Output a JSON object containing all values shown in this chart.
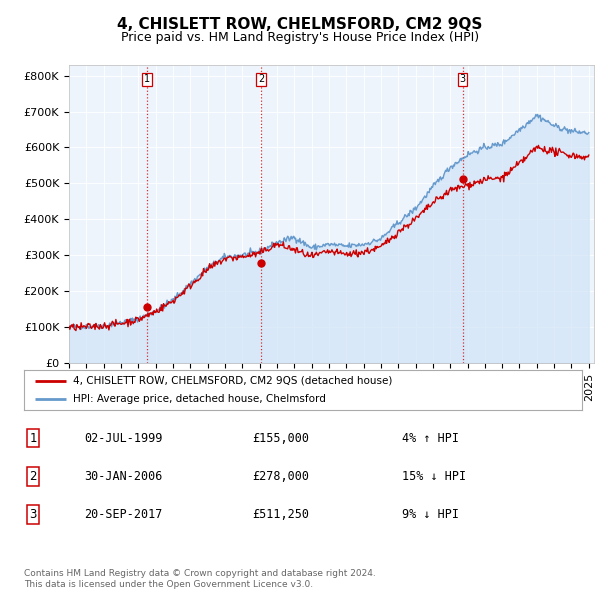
{
  "title": "4, CHISLETT ROW, CHELMSFORD, CM2 9QS",
  "subtitle": "Price paid vs. HM Land Registry's House Price Index (HPI)",
  "ylabel_ticks": [
    "£0",
    "£100K",
    "£200K",
    "£300K",
    "£400K",
    "£500K",
    "£600K",
    "£700K",
    "£800K"
  ],
  "ytick_vals": [
    0,
    100000,
    200000,
    300000,
    400000,
    500000,
    600000,
    700000,
    800000
  ],
  "ylim": [
    0,
    830000
  ],
  "xlim_start": 1995.0,
  "xlim_end": 2025.3,
  "transaction_dates": [
    1999.5,
    2006.08,
    2017.72
  ],
  "transaction_prices": [
    155000,
    278000,
    511250
  ],
  "transaction_labels": [
    "1",
    "2",
    "3"
  ],
  "vline_color": "#cc0000",
  "marker_color": "#cc0000",
  "hpi_line_color": "#6699cc",
  "hpi_fill_color": "#d0e4f7",
  "price_line_color": "#cc0000",
  "legend_label_red": "4, CHISLETT ROW, CHELMSFORD, CM2 9QS (detached house)",
  "legend_label_blue": "HPI: Average price, detached house, Chelmsford",
  "table_rows": [
    [
      "1",
      "02-JUL-1999",
      "£155,000",
      "4% ↑ HPI"
    ],
    [
      "2",
      "30-JAN-2006",
      "£278,000",
      "15% ↓ HPI"
    ],
    [
      "3",
      "20-SEP-2017",
      "£511,250",
      "9% ↓ HPI"
    ]
  ],
  "footer_text": "Contains HM Land Registry data © Crown copyright and database right 2024.\nThis data is licensed under the Open Government Licence v3.0.",
  "background_color": "#ffffff",
  "chart_bg_color": "#eef4fb",
  "grid_color": "#ffffff",
  "title_fontsize": 11,
  "subtitle_fontsize": 9,
  "tick_fontsize": 8,
  "label_fontsize": 8
}
